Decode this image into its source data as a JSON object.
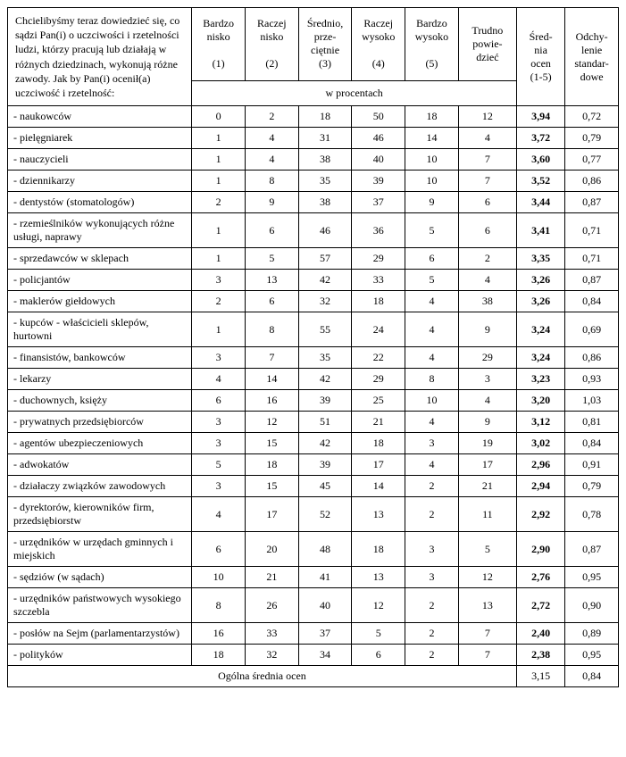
{
  "table": {
    "type": "table",
    "background_color": "#ffffff",
    "border_color": "#000000",
    "font_family": "Times New Roman",
    "base_fontsize_pt": 10,
    "question_text": "Chcielibyśmy teraz dowiedzieć się, co sądzi Pan(i) o uczciwości i rzetelności ludzi, którzy pracują lub działają w różnych dziedzinach, wykonują różne zawody. Jak by Pan(i) ocenił(a) uczciwość i rzetelność:",
    "columns": {
      "c1": {
        "line1": "Bardzo",
        "line2": "nisko",
        "num": "(1)"
      },
      "c2": {
        "line1": "Raczej",
        "line2": "nisko",
        "num": "(2)"
      },
      "c3": {
        "line1": "Średnio,",
        "line2": "prze-",
        "line3": "ciętnie",
        "num": "(3)"
      },
      "c4": {
        "line1": "Raczej",
        "line2": "wysoko",
        "num": "(4)"
      },
      "c5": {
        "line1": "Bardzo",
        "line2": "wysoko",
        "num": "(5)"
      },
      "c6": {
        "line1": "Trudno",
        "line2": "powie-",
        "line3": "dzieć"
      },
      "c7": {
        "line1": "Śred-",
        "line2": "nia",
        "line3": "ocen",
        "line4": "(1-5)"
      },
      "c8": {
        "line1": "Odchy-",
        "line2": "lenie",
        "line3": "standar-",
        "line4": "dowe"
      }
    },
    "subheader": "w procentach",
    "rows": [
      {
        "label": "- naukowców",
        "v": [
          "0",
          "2",
          "18",
          "50",
          "18",
          "12"
        ],
        "mean": "3,94",
        "std": "0,72"
      },
      {
        "label": "- pielęgniarek",
        "v": [
          "1",
          "4",
          "31",
          "46",
          "14",
          "4"
        ],
        "mean": "3,72",
        "std": "0,79"
      },
      {
        "label": "- nauczycieli",
        "v": [
          "1",
          "4",
          "38",
          "40",
          "10",
          "7"
        ],
        "mean": "3,60",
        "std": "0,77"
      },
      {
        "label": "- dziennikarzy",
        "v": [
          "1",
          "8",
          "35",
          "39",
          "10",
          "7"
        ],
        "mean": "3,52",
        "std": "0,86"
      },
      {
        "label": "- dentystów (stomatologów)",
        "v": [
          "2",
          "9",
          "38",
          "37",
          "9",
          "6"
        ],
        "mean": "3,44",
        "std": "0,87"
      },
      {
        "label": "- rzemieślników wykonujących różne usługi, naprawy",
        "v": [
          "1",
          "6",
          "46",
          "36",
          "5",
          "6"
        ],
        "mean": "3,41",
        "std": "0,71"
      },
      {
        "label": "- sprzedawców w sklepach",
        "v": [
          "1",
          "5",
          "57",
          "29",
          "6",
          "2"
        ],
        "mean": "3,35",
        "std": "0,71"
      },
      {
        "label": "- policjantów",
        "v": [
          "3",
          "13",
          "42",
          "33",
          "5",
          "4"
        ],
        "mean": "3,26",
        "std": "0,87"
      },
      {
        "label": "- maklerów giełdowych",
        "v": [
          "2",
          "6",
          "32",
          "18",
          "4",
          "38"
        ],
        "mean": "3,26",
        "std": "0,84"
      },
      {
        "label": "- kupców - właścicieli sklepów, hurtowni",
        "v": [
          "1",
          "8",
          "55",
          "24",
          "4",
          "9"
        ],
        "mean": "3,24",
        "std": "0,69"
      },
      {
        "label": "- finansistów, bankowców",
        "v": [
          "3",
          "7",
          "35",
          "22",
          "4",
          "29"
        ],
        "mean": "3,24",
        "std": "0,86"
      },
      {
        "label": "- lekarzy",
        "v": [
          "4",
          "14",
          "42",
          "29",
          "8",
          "3"
        ],
        "mean": "3,23",
        "std": "0,93"
      },
      {
        "label": "- duchownych, księży",
        "v": [
          "6",
          "16",
          "39",
          "25",
          "10",
          "4"
        ],
        "mean": "3,20",
        "std": "1,03"
      },
      {
        "label": "- prywatnych przedsiębiorców",
        "v": [
          "3",
          "12",
          "51",
          "21",
          "4",
          "9"
        ],
        "mean": "3,12",
        "std": "0,81"
      },
      {
        "label": "- agentów ubezpieczeniowych",
        "v": [
          "3",
          "15",
          "42",
          "18",
          "3",
          "19"
        ],
        "mean": "3,02",
        "std": "0,84"
      },
      {
        "label": "- adwokatów",
        "v": [
          "5",
          "18",
          "39",
          "17",
          "4",
          "17"
        ],
        "mean": "2,96",
        "std": "0,91"
      },
      {
        "label": "- działaczy związków zawodowych",
        "v": [
          "3",
          "15",
          "45",
          "14",
          "2",
          "21"
        ],
        "mean": "2,94",
        "std": "0,79"
      },
      {
        "label": "- dyrektorów, kierowników firm, przedsiębiorstw",
        "v": [
          "4",
          "17",
          "52",
          "13",
          "2",
          "11"
        ],
        "mean": "2,92",
        "std": "0,78"
      },
      {
        "label": "- urzędników w urzędach gminnych i miejskich",
        "v": [
          "6",
          "20",
          "48",
          "18",
          "3",
          "5"
        ],
        "mean": "2,90",
        "std": "0,87"
      },
      {
        "label": "- sędziów (w sądach)",
        "v": [
          "10",
          "21",
          "41",
          "13",
          "3",
          "12"
        ],
        "mean": "2,76",
        "std": "0,95"
      },
      {
        "label": "- urzędników państwowych wysokiego szczebla",
        "v": [
          "8",
          "26",
          "40",
          "12",
          "2",
          "13"
        ],
        "mean": "2,72",
        "std": "0,90"
      },
      {
        "label": "- posłów na Sejm (parlamentarzystów)",
        "v": [
          "16",
          "33",
          "37",
          "5",
          "2",
          "7"
        ],
        "mean": "2,40",
        "std": "0,89"
      },
      {
        "label": "- polityków",
        "v": [
          "18",
          "32",
          "34",
          "6",
          "2",
          "7"
        ],
        "mean": "2,38",
        "std": "0,95"
      }
    ],
    "footer": {
      "label": "Ogólna średnia ocen",
      "mean": "3,15",
      "std": "0,84"
    }
  }
}
